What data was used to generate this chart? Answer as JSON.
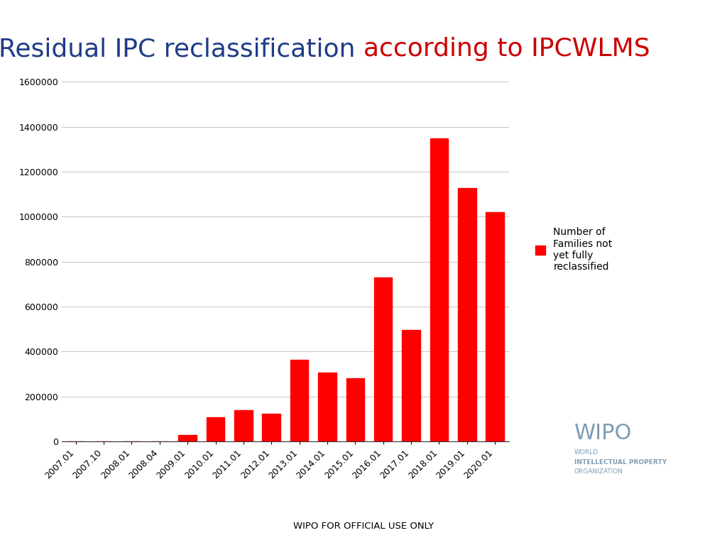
{
  "title_part1": "Residual IPC reclassification ",
  "title_part2": "according to IPCWLMS",
  "title_color1": "#1F3C88",
  "title_color2": "#CC0000",
  "title_fontsize": 26,
  "categories": [
    "2007.01",
    "2007.10",
    "2008.01",
    "2008.04",
    "2009.01",
    "2010.01",
    "2011.01",
    "2012.01",
    "2013.01",
    "2014.01",
    "2015.01",
    "2016.01",
    "2017.01",
    "2018.01",
    "2019.01",
    "2020.01"
  ],
  "values": [
    0,
    0,
    0,
    0,
    28000,
    108000,
    140000,
    122000,
    362000,
    307000,
    282000,
    730000,
    495000,
    1348000,
    1128000,
    1020000
  ],
  "bar_color": "#FF0000",
  "ylim": [
    0,
    1600000
  ],
  "yticks": [
    0,
    200000,
    400000,
    600000,
    800000,
    1000000,
    1200000,
    1400000,
    1600000
  ],
  "legend_label": "Number of\nFamilies not\nyet fully\nreclassified",
  "legend_color": "#FF0000",
  "footer_text": "WIPO FOR OFFICIAL USE ONLY",
  "footer_color": "#000000",
  "background_color": "#FFFFFF",
  "grid_color": "#BBBBBB",
  "bar_width": 0.65,
  "wipo_color": "#7D9DB5",
  "wipo_bold_size": 22,
  "wipo_sub_size": 6.5
}
